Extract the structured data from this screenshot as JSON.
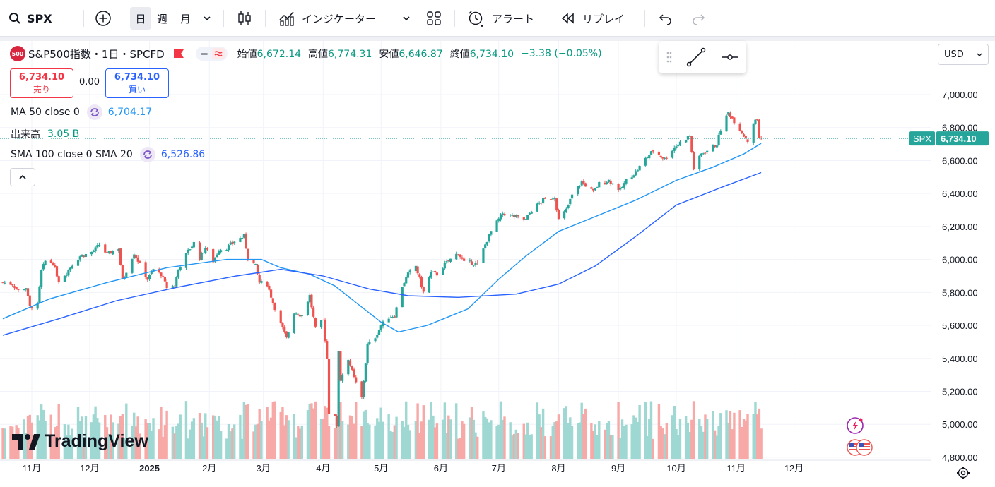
{
  "toolbar": {
    "symbol": "SPX",
    "intervals": [
      "日",
      "週",
      "月"
    ],
    "indicators_label": "インジケーター",
    "alert_label": "アラート",
    "replay_label": "リプレイ"
  },
  "legend": {
    "badge_text": "500",
    "title": "S&P500指数・1日・SPCFD",
    "ohlc": [
      {
        "label": "始値",
        "value": "6,672.14"
      },
      {
        "label": "高値",
        "value": "6,774.31"
      },
      {
        "label": "安値",
        "value": "6,646.87"
      },
      {
        "label": "終値",
        "value": "6,734.10"
      }
    ],
    "change": "−3.38 (−0.05%)",
    "sell_price": "6,734.10",
    "sell_label": "売り",
    "spread": "0.00",
    "buy_price": "6,734.10",
    "buy_label": "買い",
    "ma_label": "MA 50 close 0",
    "ma_value": "6,704.17",
    "volume_label": "出来高",
    "volume_value": "3.05 B",
    "sma_label": "SMA 100 close 0 SMA 20",
    "sma_value": "6,526.86"
  },
  "currency": "USD",
  "price_tag": {
    "symbol": "SPX",
    "value": "6,734.10"
  },
  "logo_text": "TradingView",
  "colors": {
    "up": "#26a69a",
    "down": "#ef5350",
    "ma50": "#2196f3",
    "sma100": "#2962ff",
    "up_volume": "#9fd8d2",
    "down_volume": "#f7a9a7"
  },
  "chart_data": {
    "type": "candlestick",
    "title": "S&P500指数・1日・SPCFD",
    "x_type": "date",
    "x_range": [
      "2024-10-17",
      "2025-12-10"
    ],
    "ylim": [
      4750,
      7150
    ],
    "y_ticks": [
      "7,000.00",
      "6,800.00",
      "6,600.00",
      "6,400.00",
      "6,200.00",
      "6,000.00",
      "5,800.00",
      "5,600.00",
      "5,400.00",
      "5,200.00",
      "5,000.00",
      "4,800.00"
    ],
    "x_ticks": [
      {
        "label": "11月",
        "date": "2024-11-01"
      },
      {
        "label": "12月",
        "date": "2024-12-01"
      },
      {
        "label": "2025",
        "date": "2025-01-01"
      },
      {
        "label": "2月",
        "date": "2025-02-01"
      },
      {
        "label": "3月",
        "date": "2025-03-01"
      },
      {
        "label": "4月",
        "date": "2025-04-01"
      },
      {
        "label": "5月",
        "date": "2025-05-01"
      },
      {
        "label": "6月",
        "date": "2025-06-01"
      },
      {
        "label": "7月",
        "date": "2025-07-01"
      },
      {
        "label": "8月",
        "date": "2025-08-01"
      },
      {
        "label": "9月",
        "date": "2025-09-01"
      },
      {
        "label": "10月",
        "date": "2025-10-01"
      },
      {
        "label": "11月",
        "date": "2025-11-01"
      },
      {
        "label": "12月",
        "date": "2025-12-01"
      }
    ],
    "close_series": [
      [
        "2024-10-17",
        5860
      ],
      [
        "2024-10-22",
        5850
      ],
      [
        "2024-10-25",
        5810
      ],
      [
        "2024-10-29",
        5830
      ],
      [
        "2024-10-31",
        5710
      ],
      [
        "2024-11-04",
        5725
      ],
      [
        "2024-11-06",
        5930
      ],
      [
        "2024-11-08",
        5990
      ],
      [
        "2024-11-12",
        5980
      ],
      [
        "2024-11-15",
        5870
      ],
      [
        "2024-11-19",
        5920
      ],
      [
        "2024-11-22",
        5970
      ],
      [
        "2024-11-26",
        6020
      ],
      [
        "2024-11-29",
        6030
      ],
      [
        "2024-12-03",
        6050
      ],
      [
        "2024-12-06",
        6090
      ],
      [
        "2024-12-10",
        6030
      ],
      [
        "2024-12-13",
        6050
      ],
      [
        "2024-12-16",
        6070
      ],
      [
        "2024-12-18",
        5870
      ],
      [
        "2024-12-20",
        5930
      ],
      [
        "2024-12-24",
        6040
      ],
      [
        "2024-12-27",
        5970
      ],
      [
        "2024-12-31",
        5880
      ],
      [
        "2025-01-03",
        5940
      ],
      [
        "2025-01-07",
        5910
      ],
      [
        "2025-01-10",
        5830
      ],
      [
        "2025-01-14",
        5840
      ],
      [
        "2025-01-16",
        5940
      ],
      [
        "2025-01-21",
        6050
      ],
      [
        "2025-01-24",
        6100
      ],
      [
        "2025-01-27",
        6010
      ],
      [
        "2025-01-30",
        6070
      ],
      [
        "2025-02-03",
        5990
      ],
      [
        "2025-02-06",
        6060
      ],
      [
        "2025-02-10",
        6070
      ],
      [
        "2025-02-14",
        6110
      ],
      [
        "2025-02-19",
        6140
      ],
      [
        "2025-02-21",
        6010
      ],
      [
        "2025-02-25",
        5960
      ],
      [
        "2025-02-27",
        5860
      ],
      [
        "2025-03-03",
        5850
      ],
      [
        "2025-03-06",
        5740
      ],
      [
        "2025-03-10",
        5610
      ],
      [
        "2025-03-13",
        5520
      ],
      [
        "2025-03-17",
        5680
      ],
      [
        "2025-03-21",
        5660
      ],
      [
        "2025-03-25",
        5780
      ],
      [
        "2025-03-28",
        5580
      ],
      [
        "2025-04-01",
        5630
      ],
      [
        "2025-04-03",
        5400
      ],
      [
        "2025-04-04",
        5070
      ],
      [
        "2025-04-07",
        5060
      ],
      [
        "2025-04-08",
        4980
      ],
      [
        "2025-04-09",
        5450
      ],
      [
        "2025-04-10",
        5270
      ],
      [
        "2025-04-14",
        5400
      ],
      [
        "2025-04-17",
        5280
      ],
      [
        "2025-04-21",
        5160
      ],
      [
        "2025-04-24",
        5480
      ],
      [
        "2025-04-28",
        5530
      ],
      [
        "2025-05-01",
        5600
      ],
      [
        "2025-05-05",
        5650
      ],
      [
        "2025-05-08",
        5660
      ],
      [
        "2025-05-12",
        5840
      ],
      [
        "2025-05-15",
        5910
      ],
      [
        "2025-05-19",
        5960
      ],
      [
        "2025-05-23",
        5800
      ],
      [
        "2025-05-27",
        5920
      ],
      [
        "2025-05-30",
        5910
      ],
      [
        "2025-06-03",
        5970
      ],
      [
        "2025-06-06",
        6000
      ],
      [
        "2025-06-10",
        6040
      ],
      [
        "2025-06-13",
        5980
      ],
      [
        "2025-06-17",
        5980
      ],
      [
        "2025-06-20",
        5970
      ],
      [
        "2025-06-24",
        6090
      ],
      [
        "2025-06-27",
        6170
      ],
      [
        "2025-07-03",
        6280
      ],
      [
        "2025-07-09",
        6260
      ],
      [
        "2025-07-15",
        6240
      ],
      [
        "2025-07-18",
        6300
      ],
      [
        "2025-07-24",
        6360
      ],
      [
        "2025-07-30",
        6380
      ],
      [
        "2025-08-01",
        6240
      ],
      [
        "2025-08-05",
        6300
      ],
      [
        "2025-08-08",
        6390
      ],
      [
        "2025-08-13",
        6470
      ],
      [
        "2025-08-19",
        6410
      ],
      [
        "2025-08-22",
        6460
      ],
      [
        "2025-08-27",
        6480
      ],
      [
        "2025-09-02",
        6420
      ],
      [
        "2025-09-05",
        6480
      ],
      [
        "2025-09-10",
        6530
      ],
      [
        "2025-09-15",
        6610
      ],
      [
        "2025-09-19",
        6660
      ],
      [
        "2025-09-25",
        6610
      ],
      [
        "2025-09-30",
        6680
      ],
      [
        "2025-10-03",
        6710
      ],
      [
        "2025-10-08",
        6750
      ],
      [
        "2025-10-10",
        6550
      ],
      [
        "2025-10-14",
        6640
      ],
      [
        "2025-10-17",
        6660
      ],
      [
        "2025-10-22",
        6700
      ],
      [
        "2025-10-24",
        6790
      ],
      [
        "2025-10-28",
        6890
      ],
      [
        "2025-10-31",
        6840
      ],
      [
        "2025-11-04",
        6770
      ],
      [
        "2025-11-07",
        6720
      ],
      [
        "2025-11-10",
        6830
      ],
      [
        "2025-11-12",
        6850
      ],
      [
        "2025-11-13",
        6740
      ],
      [
        "2025-11-14",
        6734.1
      ]
    ],
    "series": [
      {
        "name": "MA 50 close 0",
        "points": [
          [
            "2024-10-17",
            5640
          ],
          [
            "2024-11-10",
            5760
          ],
          [
            "2024-12-10",
            5860
          ],
          [
            "2025-01-10",
            5950
          ],
          [
            "2025-02-10",
            6000
          ],
          [
            "2025-02-28",
            6000
          ],
          [
            "2025-03-10",
            5950
          ],
          [
            "2025-03-25",
            5910
          ],
          [
            "2025-04-07",
            5840
          ],
          [
            "2025-04-20",
            5720
          ],
          [
            "2025-05-01",
            5620
          ],
          [
            "2025-05-10",
            5560
          ],
          [
            "2025-05-25",
            5600
          ],
          [
            "2025-06-15",
            5700
          ],
          [
            "2025-07-01",
            5880
          ],
          [
            "2025-07-15",
            6020
          ],
          [
            "2025-08-01",
            6170
          ],
          [
            "2025-08-20",
            6260
          ],
          [
            "2025-09-10",
            6360
          ],
          [
            "2025-10-01",
            6480
          ],
          [
            "2025-10-20",
            6560
          ],
          [
            "2025-11-05",
            6640
          ],
          [
            "2025-11-14",
            6704.17
          ]
        ]
      },
      {
        "name": "SMA 100 close 0 SMA 20",
        "points": [
          [
            "2024-10-17",
            5540
          ],
          [
            "2024-11-15",
            5640
          ],
          [
            "2024-12-15",
            5750
          ],
          [
            "2025-01-15",
            5830
          ],
          [
            "2025-02-15",
            5900
          ],
          [
            "2025-03-10",
            5940
          ],
          [
            "2025-04-01",
            5900
          ],
          [
            "2025-04-25",
            5820
          ],
          [
            "2025-05-15",
            5780
          ],
          [
            "2025-06-10",
            5770
          ],
          [
            "2025-07-10",
            5790
          ],
          [
            "2025-08-01",
            5850
          ],
          [
            "2025-08-20",
            5960
          ],
          [
            "2025-09-10",
            6140
          ],
          [
            "2025-10-01",
            6330
          ],
          [
            "2025-10-25",
            6440
          ],
          [
            "2025-11-14",
            6526.86
          ]
        ]
      }
    ]
  }
}
